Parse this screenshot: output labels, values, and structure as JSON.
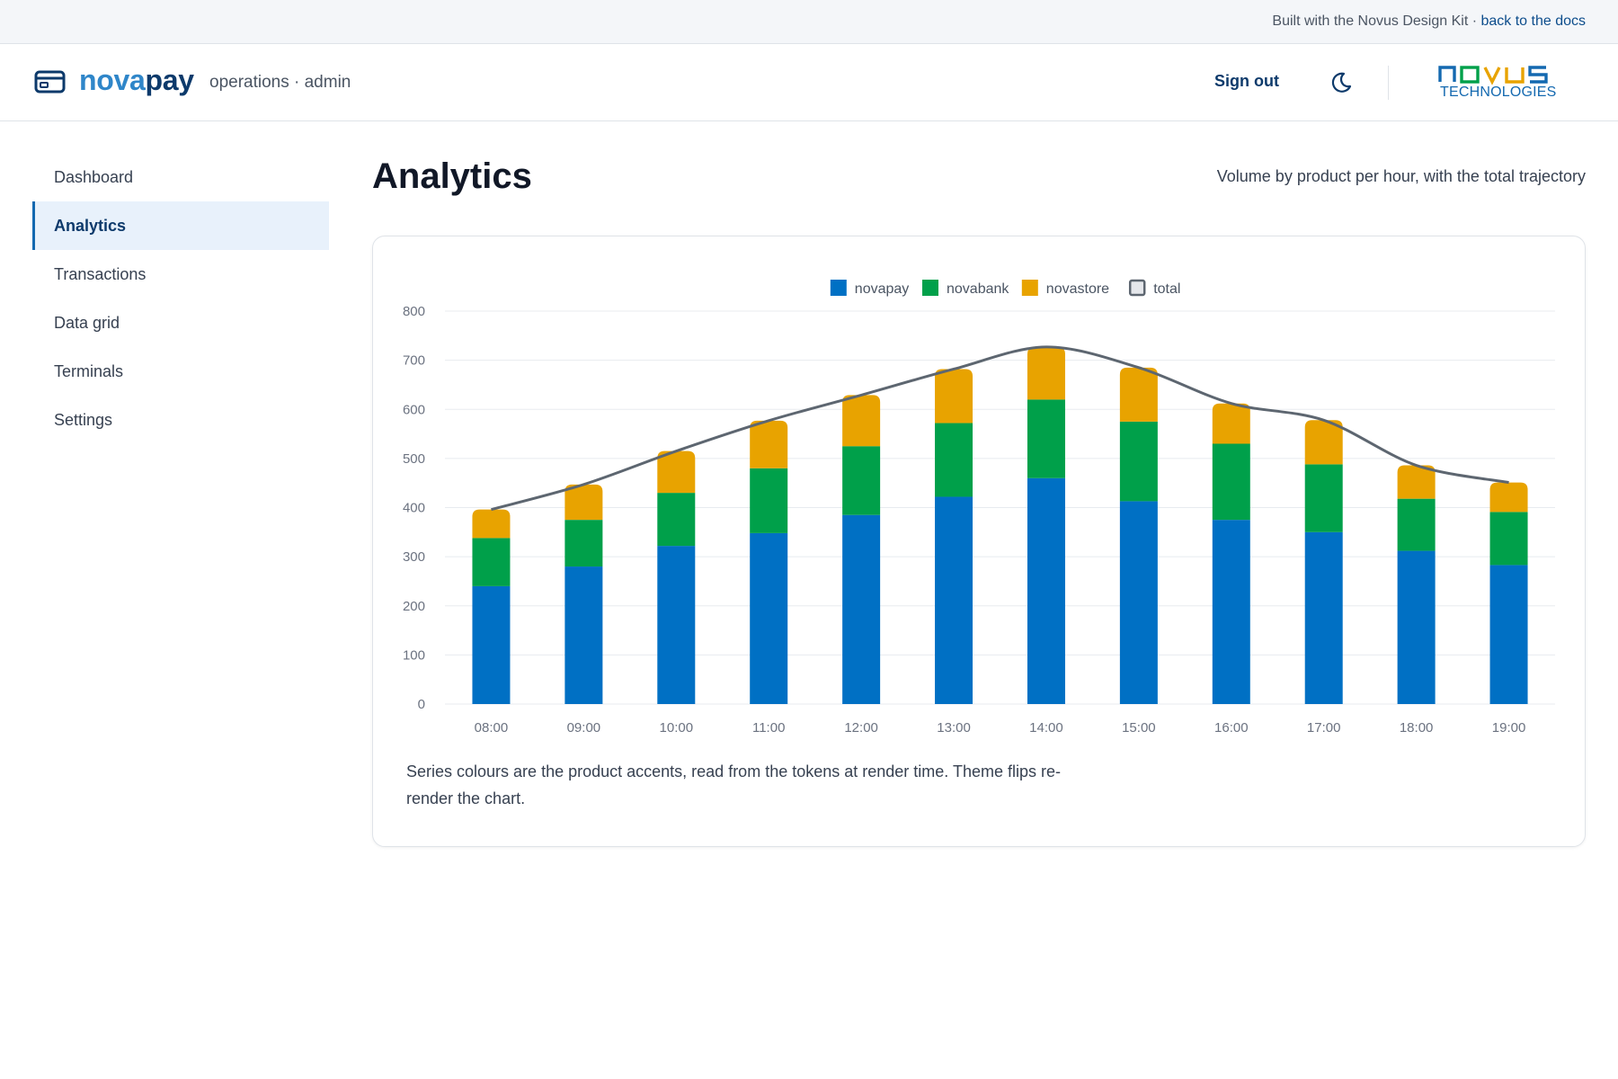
{
  "topbar": {
    "text": "Built with the Novus Design Kit · ",
    "link": "back to the docs"
  },
  "header": {
    "brand_part1": "nova",
    "brand_part2": "pay",
    "subtitle": "operations · admin",
    "signout": "Sign out",
    "logo_text": "NOVUS",
    "logo_sub": "TECHNOLOGIES"
  },
  "sidebar": {
    "items": [
      {
        "label": "Dashboard",
        "active": false
      },
      {
        "label": "Analytics",
        "active": true
      },
      {
        "label": "Transactions",
        "active": false
      },
      {
        "label": "Data grid",
        "active": false
      },
      {
        "label": "Terminals",
        "active": false
      },
      {
        "label": "Settings",
        "active": false
      }
    ]
  },
  "page": {
    "title": "Analytics",
    "subtitle": "Volume by product per hour, with the total trajectory",
    "note": "Series colours are the product accents, read from the tokens at render time. Theme flips re-render the chart."
  },
  "colors": {
    "novapay": "#0070c4",
    "novabank": "#00a04a",
    "novastore": "#e8a300",
    "total": "#5d6670"
  },
  "chart_data": {
    "type": "bar",
    "stacked": true,
    "categories": [
      "08:00",
      "09:00",
      "10:00",
      "11:00",
      "12:00",
      "13:00",
      "14:00",
      "15:00",
      "16:00",
      "17:00",
      "18:00",
      "19:00"
    ],
    "series": [
      {
        "name": "novapay",
        "values": [
          240,
          280,
          322,
          348,
          385,
          422,
          460,
          413,
          375,
          350,
          312,
          283
        ]
      },
      {
        "name": "novabank",
        "values": [
          98,
          95,
          108,
          132,
          140,
          150,
          160,
          162,
          155,
          138,
          106,
          108
        ]
      },
      {
        "name": "novastore",
        "values": [
          58,
          72,
          85,
          97,
          104,
          110,
          107,
          110,
          82,
          90,
          68,
          60
        ]
      }
    ],
    "line": {
      "name": "total",
      "values": [
        396,
        447,
        515,
        577,
        629,
        682,
        727,
        685,
        612,
        578,
        486,
        451
      ]
    },
    "ylim": [
      0,
      800
    ],
    "yticks": [
      0,
      100,
      200,
      300,
      400,
      500,
      600,
      700,
      800
    ],
    "legend": [
      "novapay",
      "novabank",
      "novastore",
      "total"
    ],
    "legend_position": "top-center",
    "grid": true
  }
}
